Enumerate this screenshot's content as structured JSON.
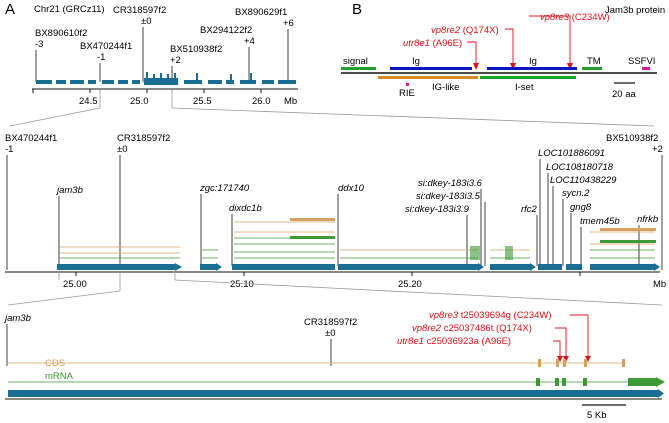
{
  "panels": {
    "a": "A",
    "b": "B"
  },
  "colors": {
    "axis": "#111111",
    "gene": "#1a6e93",
    "cds": "#d5a15c",
    "mrna": "#3e9a35",
    "mutation": "#d9141b",
    "guide": "#9a9a9a",
    "ig": "#0a14c8",
    "tm": "#1fa32b",
    "ssfvi": "#e0189a",
    "igc": "#d98a22"
  },
  "top": {
    "title": "Chr21 (GRCz11)",
    "unit": "Mb",
    "ticks": [
      "24.5",
      "25.0",
      "25.5",
      "26.0"
    ],
    "markers": [
      {
        "name": "BX890610f2",
        "delta": "-3"
      },
      {
        "name": "BX470244f1",
        "delta": "-1"
      },
      {
        "name": "CR318597f2",
        "delta": "±0"
      },
      {
        "name": "BX294122f2",
        "delta": "+4"
      },
      {
        "name": "BX510938f2",
        "delta": "+2"
      },
      {
        "name": "BX890629f1",
        "delta": "+6"
      }
    ]
  },
  "middle": {
    "unit": "Mb",
    "ticks": [
      "25.00",
      "25.10",
      "25.20"
    ],
    "markers": [
      {
        "name": "BX470244f1",
        "delta": "-1"
      },
      {
        "name": "CR318597f2",
        "delta": "±0"
      },
      {
        "name": "BX510938f2",
        "delta": "+2"
      }
    ],
    "genes": [
      "jam3b",
      "zgc:171740",
      "dixdc1b",
      "ddx10",
      "si:dkey-183i3.6",
      "si:dkey-183i3.5",
      "si:dkey-183i3.9",
      "rfc2",
      "LOC101886091",
      "LOC108180718",
      "LOC110438229",
      "sycn.2",
      "gng8",
      "tmem45b",
      "nfrkb"
    ]
  },
  "bottom": {
    "gene": "jam3b",
    "marker": {
      "name": "CR318597f2",
      "delta": "±0"
    },
    "tracks": {
      "cds": "CDS",
      "mrna": "mRNA"
    },
    "mutations": [
      {
        "allele": "vp8re3",
        "change": " t25039694g (C234W)"
      },
      {
        "allele": "vp8re2",
        "change": " c25037486t (Q174X)"
      },
      {
        "allele": "utr8e1",
        "change": " c25036923a (A96E)"
      }
    ],
    "scale": "5 Kb"
  },
  "protein": {
    "title": "Jam3b protein",
    "mutations": [
      {
        "allele": "vp8re3",
        "change": " (C234W)"
      },
      {
        "allele": "vp8re2",
        "change": " (Q174X)"
      },
      {
        "allele": "utr8e1",
        "change": " (A96E)"
      }
    ],
    "domains": [
      "signal",
      "Ig",
      "Ig",
      "TM",
      "SSFVI"
    ],
    "regions": [
      "RIE",
      "IG-like",
      "I-set"
    ],
    "scale": "20 aa"
  }
}
